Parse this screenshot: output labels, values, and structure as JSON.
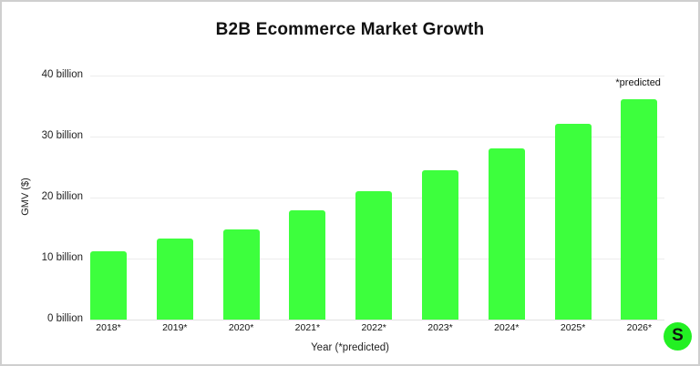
{
  "chart_data": {
    "type": "bar",
    "title": "B2B Ecommerce Market Growth",
    "xlabel": "Year (*predicted)",
    "ylabel": "GMV ($)",
    "categories": [
      "2018*",
      "2019*",
      "2020*",
      "2021*",
      "2022*",
      "2023*",
      "2024*",
      "2025*",
      "2026*"
    ],
    "values": [
      11.2,
      13.3,
      14.8,
      17.9,
      21.0,
      24.5,
      28.1,
      32.1,
      36.1
    ],
    "units": "billion",
    "ylim": [
      0,
      40
    ],
    "yticks": [
      "0 billion",
      "10 billion",
      "20 billion",
      "30 billion",
      "40 billion"
    ],
    "grid": true,
    "legend": null,
    "annotations": [
      {
        "text": "*predicted",
        "near": "2026*"
      }
    ],
    "bar_color": "#3dff3d"
  },
  "logo": {
    "letter": "S",
    "color": "#23f023"
  }
}
